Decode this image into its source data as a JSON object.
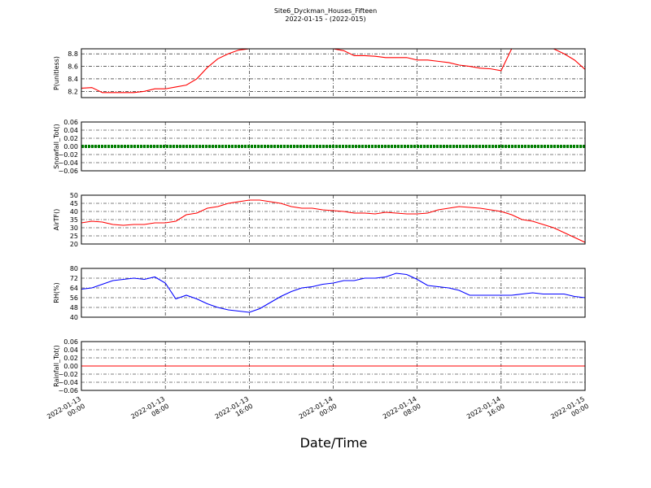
{
  "chart_data": [
    {
      "type": "line",
      "title": "Site6_Dyckman_Houses_Fifteen",
      "subtitle": "2022-01-15 - (2022-015)",
      "ylabel": "P(unitless)",
      "color": "#ff0000",
      "x": [
        "2022-01-13 00:00",
        "2022-01-13 01:00",
        "2022-01-13 02:00",
        "2022-01-13 03:00",
        "2022-01-13 04:00",
        "2022-01-13 05:00",
        "2022-01-13 06:00",
        "2022-01-13 07:00",
        "2022-01-13 08:00",
        "2022-01-13 09:00",
        "2022-01-13 10:00",
        "2022-01-13 11:00",
        "2022-01-13 12:00",
        "2022-01-13 13:00",
        "2022-01-13 14:00",
        "2022-01-13 15:00",
        "2022-01-13 16:00",
        "2022-01-13 17:00",
        "2022-01-13 18:00",
        "2022-01-13 19:00",
        "2022-01-13 20:00",
        "2022-01-13 21:00",
        "2022-01-13 22:00",
        "2022-01-13 23:00",
        "2022-01-14 00:00",
        "2022-01-14 01:00",
        "2022-01-14 02:00",
        "2022-01-14 03:00",
        "2022-01-14 04:00",
        "2022-01-14 05:00",
        "2022-01-14 06:00",
        "2022-01-14 07:00",
        "2022-01-14 08:00",
        "2022-01-14 09:00",
        "2022-01-14 10:00",
        "2022-01-14 11:00",
        "2022-01-14 12:00",
        "2022-01-14 13:00",
        "2022-01-14 14:00",
        "2022-01-14 15:00",
        "2022-01-14 16:00",
        "2022-01-14 17:00",
        "2022-01-14 18:00",
        "2022-01-14 19:00",
        "2022-01-14 20:00",
        "2022-01-14 21:00",
        "2022-01-14 22:00",
        "2022-01-14 23:00",
        "2022-01-15 00:00"
      ],
      "values": [
        8.25,
        8.26,
        8.18,
        8.18,
        8.18,
        8.18,
        8.2,
        8.24,
        8.24,
        8.27,
        8.3,
        8.4,
        8.58,
        8.72,
        8.8,
        8.86,
        8.88,
        8.88,
        8.88,
        8.88,
        8.88,
        8.88,
        8.88,
        8.88,
        8.88,
        8.85,
        8.77,
        8.77,
        8.76,
        8.74,
        8.74,
        8.74,
        8.7,
        8.7,
        8.68,
        8.66,
        8.62,
        8.6,
        8.57,
        8.56,
        8.53,
        8.88,
        8.88,
        8.88,
        8.88,
        8.88,
        8.8,
        8.7,
        8.55
      ],
      "ylim": [
        8.1,
        8.88
      ],
      "yticks": [
        8.2,
        8.4,
        8.6,
        8.8
      ],
      "grid": true
    },
    {
      "type": "line",
      "ylabel": "Snowfall_Tot()",
      "color": "#008000",
      "x": [
        "2022-01-13 00:00",
        "2022-01-13 01:00",
        "2022-01-13 02:00",
        "2022-01-13 03:00",
        "2022-01-13 04:00",
        "2022-01-13 05:00",
        "2022-01-13 06:00",
        "2022-01-13 07:00",
        "2022-01-13 08:00",
        "2022-01-13 09:00",
        "2022-01-13 10:00",
        "2022-01-13 11:00",
        "2022-01-13 12:00",
        "2022-01-13 13:00",
        "2022-01-13 14:00",
        "2022-01-13 15:00",
        "2022-01-13 16:00",
        "2022-01-13 17:00",
        "2022-01-13 18:00",
        "2022-01-13 19:00",
        "2022-01-13 20:00",
        "2022-01-13 21:00",
        "2022-01-13 22:00",
        "2022-01-13 23:00",
        "2022-01-14 00:00",
        "2022-01-14 01:00",
        "2022-01-14 02:00",
        "2022-01-14 03:00",
        "2022-01-14 04:00",
        "2022-01-14 05:00",
        "2022-01-14 06:00",
        "2022-01-14 07:00",
        "2022-01-14 08:00",
        "2022-01-14 09:00",
        "2022-01-14 10:00",
        "2022-01-14 11:00",
        "2022-01-14 12:00",
        "2022-01-14 13:00",
        "2022-01-14 14:00",
        "2022-01-14 15:00",
        "2022-01-14 16:00",
        "2022-01-14 17:00",
        "2022-01-14 18:00",
        "2022-01-14 19:00",
        "2022-01-14 20:00",
        "2022-01-14 21:00",
        "2022-01-14 22:00",
        "2022-01-14 23:00",
        "2022-01-15 00:00"
      ],
      "values": [
        0,
        0,
        0,
        0,
        0,
        0,
        0,
        0,
        0,
        0,
        0,
        0,
        0,
        0,
        0,
        0,
        0,
        0,
        0,
        0,
        0,
        0,
        0,
        0,
        0,
        0,
        0,
        0,
        0,
        0,
        0,
        0,
        0,
        0,
        0,
        0,
        0,
        0,
        0,
        0,
        0,
        0,
        0,
        0,
        0,
        0,
        0,
        0,
        0
      ],
      "ylim": [
        -0.06,
        0.06
      ],
      "yticks": [
        {
          "value": -0.06,
          "label": "−0.06"
        },
        {
          "value": -0.04,
          "label": "−0.04"
        },
        {
          "value": -0.02,
          "label": "−0.02"
        },
        {
          "value": 0,
          "label": "0.00"
        },
        {
          "value": 0.02,
          "label": "0.02"
        },
        {
          "value": 0.04,
          "label": "0.04"
        },
        {
          "value": 0.06,
          "label": "0.06"
        }
      ],
      "grid": true
    },
    {
      "type": "line",
      "ylabel": "AirTF()",
      "color": "#ff0000",
      "x": [
        "2022-01-13 00:00",
        "2022-01-13 01:00",
        "2022-01-13 02:00",
        "2022-01-13 03:00",
        "2022-01-13 04:00",
        "2022-01-13 05:00",
        "2022-01-13 06:00",
        "2022-01-13 07:00",
        "2022-01-13 08:00",
        "2022-01-13 09:00",
        "2022-01-13 10:00",
        "2022-01-13 11:00",
        "2022-01-13 12:00",
        "2022-01-13 13:00",
        "2022-01-13 14:00",
        "2022-01-13 15:00",
        "2022-01-13 16:00",
        "2022-01-13 17:00",
        "2022-01-13 18:00",
        "2022-01-13 19:00",
        "2022-01-13 20:00",
        "2022-01-13 21:00",
        "2022-01-13 22:00",
        "2022-01-13 23:00",
        "2022-01-14 00:00",
        "2022-01-14 01:00",
        "2022-01-14 02:00",
        "2022-01-14 03:00",
        "2022-01-14 04:00",
        "2022-01-14 05:00",
        "2022-01-14 06:00",
        "2022-01-14 07:00",
        "2022-01-14 08:00",
        "2022-01-14 09:00",
        "2022-01-14 10:00",
        "2022-01-14 11:00",
        "2022-01-14 12:00",
        "2022-01-14 13:00",
        "2022-01-14 14:00",
        "2022-01-14 15:00",
        "2022-01-14 16:00",
        "2022-01-14 17:00",
        "2022-01-14 18:00",
        "2022-01-14 19:00",
        "2022-01-14 20:00",
        "2022-01-14 21:00",
        "2022-01-14 22:00",
        "2022-01-14 23:00",
        "2022-01-15 00:00"
      ],
      "values": [
        33,
        34,
        33.5,
        32,
        31.5,
        32,
        32,
        33,
        33,
        34,
        38,
        39,
        42,
        43,
        45,
        46,
        47,
        47,
        46,
        45,
        43,
        42,
        42,
        41,
        40.5,
        40,
        39,
        39,
        38.5,
        39.5,
        39,
        38.5,
        38.5,
        39,
        41,
        42,
        43,
        42.5,
        42,
        41,
        40,
        38,
        35,
        34,
        32,
        30,
        27,
        24,
        21
      ],
      "ylim": [
        20,
        50
      ],
      "yticks": [
        20,
        25,
        30,
        35,
        40,
        45,
        50
      ],
      "grid": true
    },
    {
      "type": "line",
      "ylabel": "RH(%)",
      "color": "#0000ff",
      "x": [
        "2022-01-13 00:00",
        "2022-01-13 01:00",
        "2022-01-13 02:00",
        "2022-01-13 03:00",
        "2022-01-13 04:00",
        "2022-01-13 05:00",
        "2022-01-13 06:00",
        "2022-01-13 07:00",
        "2022-01-13 08:00",
        "2022-01-13 09:00",
        "2022-01-13 10:00",
        "2022-01-13 11:00",
        "2022-01-13 12:00",
        "2022-01-13 13:00",
        "2022-01-13 14:00",
        "2022-01-13 15:00",
        "2022-01-13 16:00",
        "2022-01-13 17:00",
        "2022-01-13 18:00",
        "2022-01-13 19:00",
        "2022-01-13 20:00",
        "2022-01-13 21:00",
        "2022-01-13 22:00",
        "2022-01-13 23:00",
        "2022-01-14 00:00",
        "2022-01-14 01:00",
        "2022-01-14 02:00",
        "2022-01-14 03:00",
        "2022-01-14 04:00",
        "2022-01-14 05:00",
        "2022-01-14 06:00",
        "2022-01-14 07:00",
        "2022-01-14 08:00",
        "2022-01-14 09:00",
        "2022-01-14 10:00",
        "2022-01-14 11:00",
        "2022-01-14 12:00",
        "2022-01-14 13:00",
        "2022-01-14 14:00",
        "2022-01-14 15:00",
        "2022-01-14 16:00",
        "2022-01-14 17:00",
        "2022-01-14 18:00",
        "2022-01-14 19:00",
        "2022-01-14 20:00",
        "2022-01-14 21:00",
        "2022-01-14 22:00",
        "2022-01-14 23:00",
        "2022-01-15 00:00"
      ],
      "values": [
        63,
        64,
        67,
        70,
        71,
        72,
        71,
        73,
        68,
        55,
        58,
        55,
        51,
        48,
        46,
        45,
        44,
        47,
        52,
        57,
        61,
        64,
        65,
        67,
        68,
        70,
        70,
        72,
        72,
        73,
        76,
        75,
        71,
        66,
        65,
        64,
        62,
        58,
        58,
        58,
        58,
        58,
        59,
        60,
        59,
        59,
        59,
        57,
        56
      ],
      "ylim": [
        40,
        80
      ],
      "yticks": [
        40,
        48,
        56,
        64,
        72,
        80
      ],
      "grid": true
    },
    {
      "type": "line",
      "ylabel": "Rainfall_Tot()",
      "xlabel": "Date/Time",
      "color": "#ff0000",
      "x": [
        "2022-01-13 00:00",
        "2022-01-13 01:00",
        "2022-01-13 02:00",
        "2022-01-13 03:00",
        "2022-01-13 04:00",
        "2022-01-13 05:00",
        "2022-01-13 06:00",
        "2022-01-13 07:00",
        "2022-01-13 08:00",
        "2022-01-13 09:00",
        "2022-01-13 10:00",
        "2022-01-13 11:00",
        "2022-01-13 12:00",
        "2022-01-13 13:00",
        "2022-01-13 14:00",
        "2022-01-13 15:00",
        "2022-01-13 16:00",
        "2022-01-13 17:00",
        "2022-01-13 18:00",
        "2022-01-13 19:00",
        "2022-01-13 20:00",
        "2022-01-13 21:00",
        "2022-01-13 22:00",
        "2022-01-13 23:00",
        "2022-01-14 00:00",
        "2022-01-14 01:00",
        "2022-01-14 02:00",
        "2022-01-14 03:00",
        "2022-01-14 04:00",
        "2022-01-14 05:00",
        "2022-01-14 06:00",
        "2022-01-14 07:00",
        "2022-01-14 08:00",
        "2022-01-14 09:00",
        "2022-01-14 10:00",
        "2022-01-14 11:00",
        "2022-01-14 12:00",
        "2022-01-14 13:00",
        "2022-01-14 14:00",
        "2022-01-14 15:00",
        "2022-01-14 16:00",
        "2022-01-14 17:00",
        "2022-01-14 18:00",
        "2022-01-14 19:00",
        "2022-01-14 20:00",
        "2022-01-14 21:00",
        "2022-01-14 22:00",
        "2022-01-14 23:00",
        "2022-01-15 00:00"
      ],
      "values": [
        0,
        0,
        0,
        0,
        0,
        0,
        0,
        0,
        0,
        0,
        0,
        0,
        0,
        0,
        0,
        0,
        0,
        0,
        0,
        0,
        0,
        0,
        0,
        0,
        0,
        0,
        0,
        0,
        0,
        0,
        0,
        0,
        0,
        0,
        0,
        0,
        0,
        0,
        0,
        0,
        0,
        0,
        0,
        0,
        0,
        0,
        0,
        0,
        0
      ],
      "xlim": [
        "2022-01-13 00:00",
        "2022-01-15 00:00"
      ],
      "xticks": [
        "2022-01-13 00:00",
        "2022-01-13 08:00",
        "2022-01-13 16:00",
        "2022-01-14 00:00",
        "2022-01-14 08:00",
        "2022-01-14 16:00",
        "2022-01-15 00:00"
      ],
      "ylim": [
        -0.06,
        0.06
      ],
      "yticks": [
        {
          "value": -0.06,
          "label": "−0.06"
        },
        {
          "value": -0.04,
          "label": "−0.04"
        },
        {
          "value": -0.02,
          "label": "−0.02"
        },
        {
          "value": 0,
          "label": "0.00"
        },
        {
          "value": 0.02,
          "label": "0.02"
        },
        {
          "value": 0.04,
          "label": "0.04"
        },
        {
          "value": 0.06,
          "label": "0.06"
        }
      ],
      "grid": true
    }
  ]
}
